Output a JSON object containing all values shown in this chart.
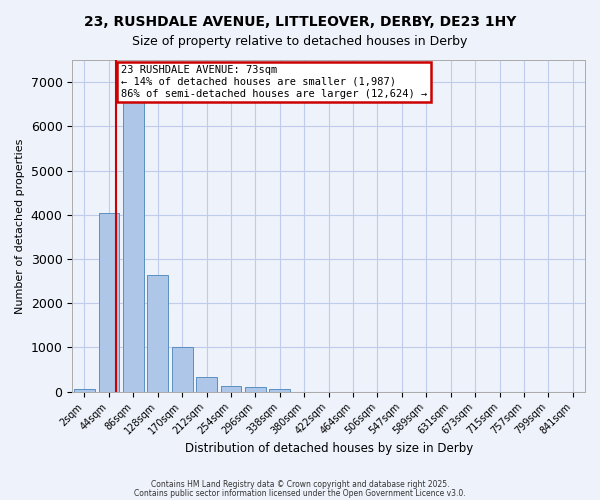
{
  "title1": "23, RUSHDALE AVENUE, LITTLEOVER, DERBY, DE23 1HY",
  "title2": "Size of property relative to detached houses in Derby",
  "xlabel": "Distribution of detached houses by size in Derby",
  "ylabel": "Number of detached properties",
  "bin_labels": [
    "2sqm",
    "44sqm",
    "86sqm",
    "128sqm",
    "170sqm",
    "212sqm",
    "254sqm",
    "296sqm",
    "338sqm",
    "380sqm",
    "422sqm",
    "464sqm",
    "506sqm",
    "547sqm",
    "589sqm",
    "631sqm",
    "673sqm",
    "715sqm",
    "757sqm",
    "799sqm",
    "841sqm"
  ],
  "bar_values": [
    70,
    4050,
    6620,
    2650,
    1000,
    340,
    130,
    100,
    60,
    0,
    0,
    0,
    0,
    0,
    0,
    0,
    0,
    0,
    0,
    0,
    0
  ],
  "bar_color": "#aec6e8",
  "bar_edge_color": "#5a8fc0",
  "background_color": "#eef2fa",
  "grid_color": "#c0ccec",
  "property_line_x": 1.28,
  "annotation_text": "23 RUSHDALE AVENUE: 73sqm\n← 14% of detached houses are smaller (1,987)\n86% of semi-detached houses are larger (12,624) →",
  "annotation_box_color": "#ffffff",
  "annotation_box_edge": "#cc0000",
  "property_line_color": "#cc0000",
  "ylim": [
    0,
    7500
  ],
  "yticks": [
    0,
    1000,
    2000,
    3000,
    4000,
    5000,
    6000,
    7000
  ],
  "footer1": "Contains HM Land Registry data © Crown copyright and database right 2025.",
  "footer2": "Contains public sector information licensed under the Open Government Licence v3.0."
}
